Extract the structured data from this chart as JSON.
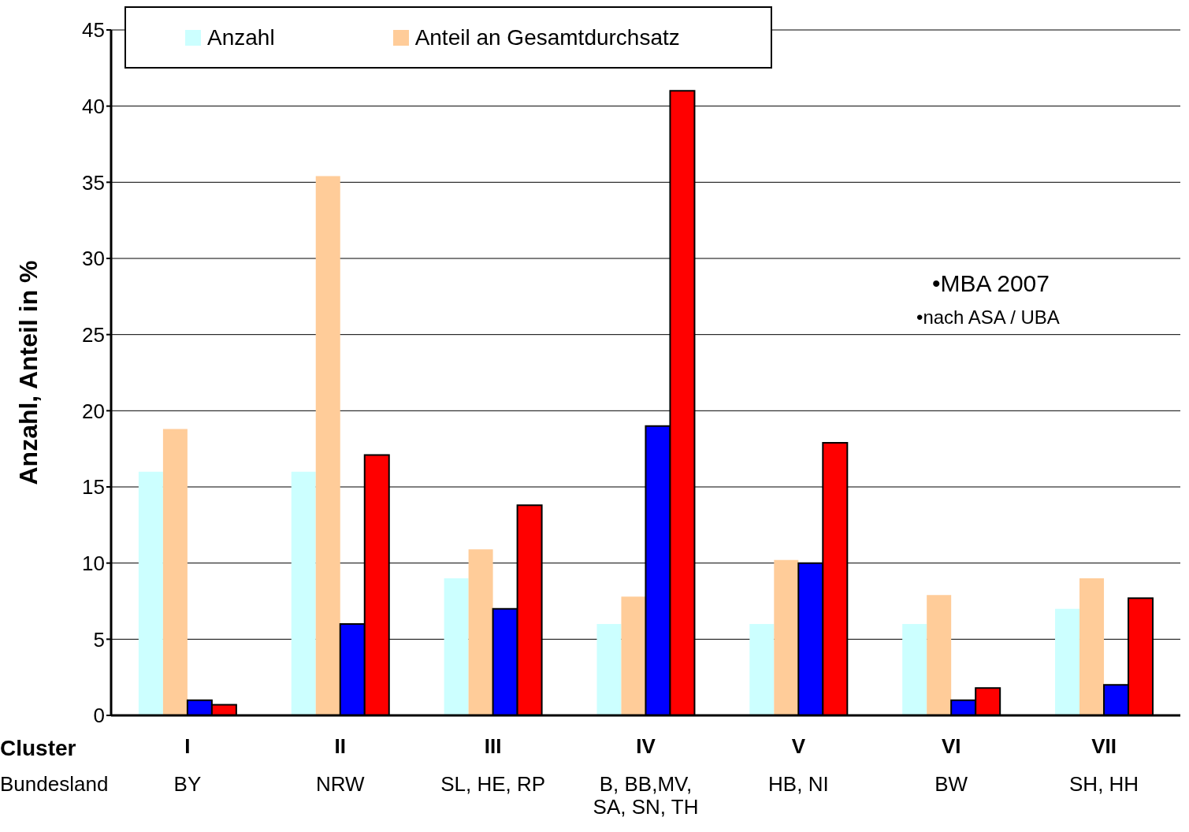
{
  "chart_data": {
    "type": "bar",
    "categories": [
      "I\nBY",
      "II\nNRW",
      "III\nSL, HE, RP",
      "IV\nB, BB,MV,\nSA, SN, TH",
      "V\nHB, NI",
      "VI\nBW",
      "VII\nSH, HH"
    ],
    "ylabel": "Anzahl, Anteil in %",
    "series": [
      {
        "name": "Anzahl",
        "color": "#ccffff",
        "values": [
          16,
          16,
          9,
          6,
          6,
          6,
          7
        ]
      },
      {
        "name": "Anteil an Gesamtdurchsatz",
        "color": "#ffcc99",
        "values": [
          18.8,
          35.4,
          10.9,
          7.8,
          10.2,
          7.9,
          9.0
        ]
      },
      {
        "color": "#0000ff",
        "values": [
          1,
          6,
          7,
          19,
          10,
          1,
          2
        ]
      },
      {
        "color": "#ff0000",
        "values": [
          0.7,
          17.1,
          13.8,
          41.0,
          17.9,
          1.8,
          7.7
        ]
      }
    ],
    "ylim": [
      0,
      45
    ],
    "yticks": [
      0,
      5,
      10,
      15,
      20,
      25,
      30,
      35,
      40,
      45
    ],
    "grid": "y",
    "legend": "top",
    "annotations": [
      "Cluster",
      "Bundesland",
      "•MBA 2007",
      "•nach ASA / UBA"
    ]
  }
}
